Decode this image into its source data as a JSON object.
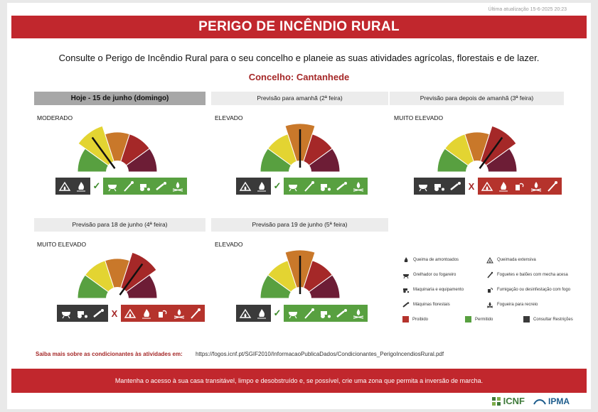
{
  "header": {
    "updated": "Última atualização 15-6-2025 20:23",
    "title": "PERIGO DE INCÊNDIO RURAL",
    "intro": "Consulte o Perigo de Incêndio Rural para o seu concelho e planeie as suas atividades agrícolas, florestais e de lazer.",
    "concelho": "Concelho: Cantanhede"
  },
  "colors": {
    "brand_red": "#c1272d",
    "gauge": [
      "#58a040",
      "#e3d432",
      "#c9782a",
      "#a52828",
      "#6d1d36"
    ],
    "proibido": "#b5332c",
    "permitido": "#58a040",
    "consultar": "#3a3a3a"
  },
  "days": [
    {
      "head": "Hoje - 15 de junho (domingo)",
      "level": "MODERADO",
      "level_index": 1,
      "check": "✓"
    },
    {
      "head": "Previsão para amanhã (2ª feira)",
      "level": "ELEVADO",
      "level_index": 2,
      "check": "✓"
    },
    {
      "head": "Previsão para depois de amanhã (3ª feira)",
      "level": "MUITO ELEVADO",
      "level_index": 3,
      "check": "X"
    },
    {
      "head": "Previsão para 18 de junho (4ª feira)",
      "level": "MUITO ELEVADO",
      "level_index": 3,
      "check": "X"
    },
    {
      "head": "Previsão para 19 de junho (5ª feira)",
      "level": "ELEVADO",
      "level_index": 2,
      "check": "✓"
    }
  ],
  "legend": {
    "items": [
      {
        "icon": "fire-pile-icon",
        "label": "Queima de amontoados"
      },
      {
        "icon": "field-fire-icon",
        "label": "Queimada extensiva"
      },
      {
        "icon": "grill-icon",
        "label": "Grelhador ou fogareiro"
      },
      {
        "icon": "fireworks-icon",
        "label": "Foguetes e balões com mecha acesa"
      },
      {
        "icon": "tractor-icon",
        "label": "Maquinaria e equipamento"
      },
      {
        "icon": "fumigation-icon",
        "label": "Fumigação ou desinfestação com fogo"
      },
      {
        "icon": "chainsaw-icon",
        "label": "Máquinas florestais"
      },
      {
        "icon": "campfire-icon",
        "label": "Fogueira para recreio"
      }
    ],
    "swatches": [
      {
        "label": "Proibido"
      },
      {
        "label": "Permitido"
      },
      {
        "label": "Consultar Restrições"
      }
    ]
  },
  "saiba": {
    "label": "Saiba mais sobre as condicionantes às atividades em:",
    "url": "https://fogos.icnf.pt/SGIF2010/InformacaoPublicaDados/Condicionantes_PerigoIncendiosRural.pdf"
  },
  "footer": {
    "message": "Mantenha o acesso à sua casa transitável, limpo e desobstruído e, se possível, crie uma zona que permita a inversão de marcha.",
    "icnf": "ICNF",
    "ipma": "IPMA"
  }
}
